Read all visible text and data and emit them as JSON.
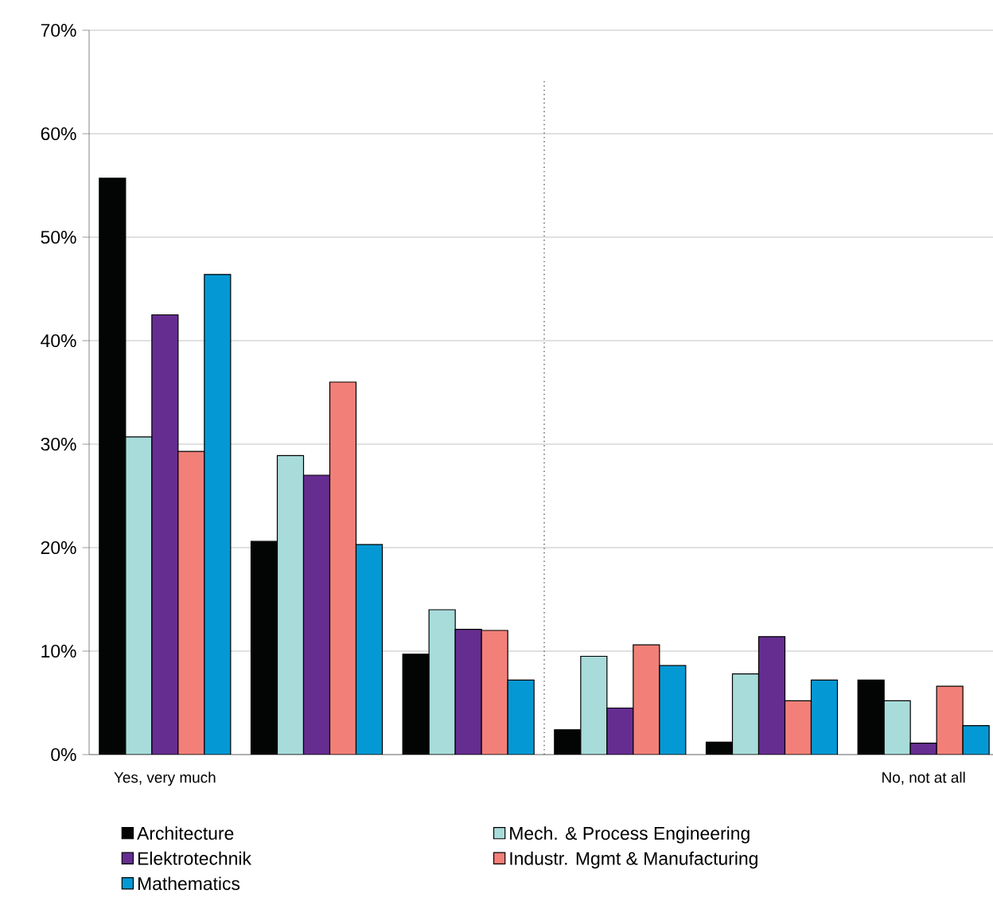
{
  "chart_data": {
    "type": "bar",
    "categories": [
      "Yes, very much",
      null,
      null,
      null,
      null,
      "No, not at all"
    ],
    "series": [
      {
        "name": "Architecture",
        "color": "#030404",
        "values": [
          55.7,
          20.6,
          9.7,
          2.4,
          1.2,
          7.2
        ]
      },
      {
        "name": "Mech. & Process Engineering",
        "color": "#a8dcdb",
        "values": [
          30.7,
          28.9,
          14.0,
          9.5,
          7.8,
          5.2
        ]
      },
      {
        "name": "Elektrotechnik",
        "color": "#662d91",
        "values": [
          42.5,
          27.0,
          12.1,
          4.5,
          11.4,
          1.1
        ]
      },
      {
        "name": "Industr. Mgmt & Manufacturing",
        "color": "#f28078",
        "values": [
          29.3,
          36.0,
          12.0,
          10.6,
          5.2,
          6.6
        ]
      },
      {
        "name": "Mathematics",
        "color": "#0499d4",
        "values": [
          46.4,
          20.3,
          7.2,
          8.6,
          7.2,
          2.8
        ]
      }
    ],
    "ylim": [
      0,
      70
    ],
    "yticks": [
      {
        "value": 0,
        "label": "0%"
      },
      {
        "value": 10,
        "label": "10%"
      },
      {
        "value": 20,
        "label": "20%"
      },
      {
        "value": 30,
        "label": "30%"
      },
      {
        "value": 40,
        "label": "40%"
      },
      {
        "value": 50,
        "label": "50%"
      },
      {
        "value": 60,
        "label": "60%"
      },
      {
        "value": 70,
        "label": "70%"
      }
    ],
    "grid": "y",
    "legend": "bottom"
  }
}
